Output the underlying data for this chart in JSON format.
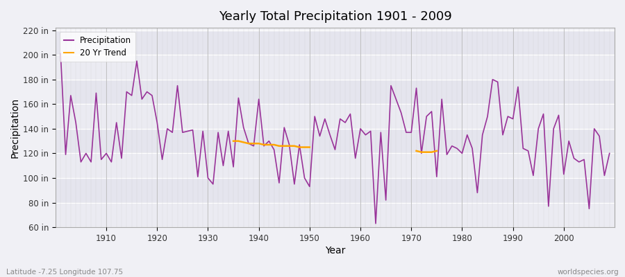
{
  "title": "Yearly Total Precipitation 1901 - 2009",
  "xlabel": "Year",
  "ylabel": "Precipitation",
  "bg_color": "#f0f0f5",
  "precip_color": "#993399",
  "trend_color": "#FFA500",
  "ylim": [
    60,
    222
  ],
  "yticks": [
    60,
    80,
    100,
    120,
    140,
    160,
    180,
    200,
    220
  ],
  "bottom_left_label": "Latitude -7.25 Longitude 107.75",
  "bottom_right_label": "worldspecies.org",
  "years": [
    1901,
    1902,
    1903,
    1904,
    1905,
    1906,
    1907,
    1908,
    1909,
    1910,
    1911,
    1912,
    1913,
    1914,
    1915,
    1916,
    1917,
    1918,
    1919,
    1920,
    1921,
    1922,
    1923,
    1924,
    1925,
    1926,
    1927,
    1928,
    1929,
    1930,
    1931,
    1932,
    1933,
    1934,
    1935,
    1936,
    1937,
    1938,
    1939,
    1940,
    1941,
    1942,
    1943,
    1944,
    1945,
    1946,
    1947,
    1948,
    1949,
    1950,
    1951,
    1952,
    1953,
    1954,
    1955,
    1956,
    1957,
    1958,
    1959,
    1960,
    1961,
    1962,
    1963,
    1964,
    1965,
    1966,
    1967,
    1968,
    1969,
    1970,
    1971,
    1972,
    1973,
    1974,
    1975,
    1976,
    1977,
    1978,
    1979,
    1980,
    1981,
    1982,
    1983,
    1984,
    1985,
    1986,
    1987,
    1988,
    1989,
    1990,
    1991,
    1992,
    1993,
    1994,
    1995,
    1996,
    1997,
    1998,
    1999,
    2000,
    2001,
    2002,
    2003,
    2004,
    2005,
    2006,
    2007,
    2008,
    2009
  ],
  "precip": [
    201,
    119,
    167,
    145,
    113,
    120,
    113,
    169,
    115,
    120,
    113,
    145,
    116,
    170,
    167,
    195,
    164,
    170,
    167,
    145,
    115,
    140,
    137,
    175,
    137,
    138,
    139,
    101,
    138,
    100,
    95,
    137,
    110,
    138,
    109,
    165,
    141,
    128,
    126,
    164,
    126,
    130,
    123,
    96,
    141,
    127,
    95,
    127,
    100,
    93,
    150,
    134,
    148,
    135,
    123,
    148,
    145,
    152,
    116,
    140,
    135,
    138,
    63,
    137,
    82,
    175,
    164,
    153,
    137,
    137,
    173,
    120,
    150,
    154,
    101,
    164,
    119,
    126,
    124,
    120,
    135,
    124,
    88,
    135,
    150,
    180,
    178,
    135,
    150,
    148,
    174,
    124,
    122,
    102,
    140,
    152,
    77,
    140,
    151,
    103,
    130,
    116,
    113,
    115,
    75,
    140,
    134,
    102,
    120
  ],
  "trend_seg1_years": [
    1935,
    1936,
    1937,
    1938,
    1939,
    1940,
    1941,
    1942,
    1943,
    1944,
    1945,
    1946,
    1947,
    1948,
    1949,
    1950
  ],
  "trend_seg1_vals": [
    130,
    130,
    129,
    128,
    128,
    128,
    127,
    127,
    127,
    126,
    126,
    126,
    126,
    125,
    125,
    125
  ],
  "trend_seg2_years": [
    1971,
    1972,
    1973,
    1974,
    1975
  ],
  "trend_seg2_vals": [
    122,
    121,
    121,
    121,
    122
  ]
}
